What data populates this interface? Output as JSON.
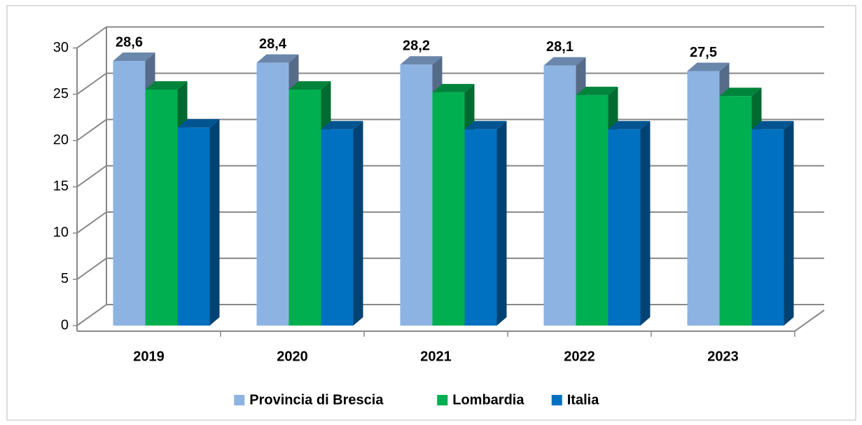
{
  "chart_data": {
    "type": "bar3d",
    "categories": [
      "2019",
      "2020",
      "2021",
      "2022",
      "2023"
    ],
    "series": [
      {
        "name": "Provincia di Brescia",
        "color": "#8db3e2",
        "values": [
          28.6,
          28.4,
          28.2,
          28.1,
          27.5
        ],
        "value_labels": [
          "28,6",
          "28,4",
          "28,2",
          "28,1",
          "27,5"
        ]
      },
      {
        "name": "Lombardia",
        "color": "#00b050",
        "values": [
          25.5,
          25.5,
          25.2,
          24.9,
          24.8
        ]
      },
      {
        "name": "Italia",
        "color": "#0070c0",
        "values": [
          21.4,
          21.2,
          21.2,
          21.2,
          21.2
        ]
      }
    ],
    "ylim": [
      0,
      30
    ],
    "yticks": [
      0,
      5,
      10,
      15,
      20,
      25,
      30
    ],
    "grid": true,
    "legend": "bottom"
  }
}
